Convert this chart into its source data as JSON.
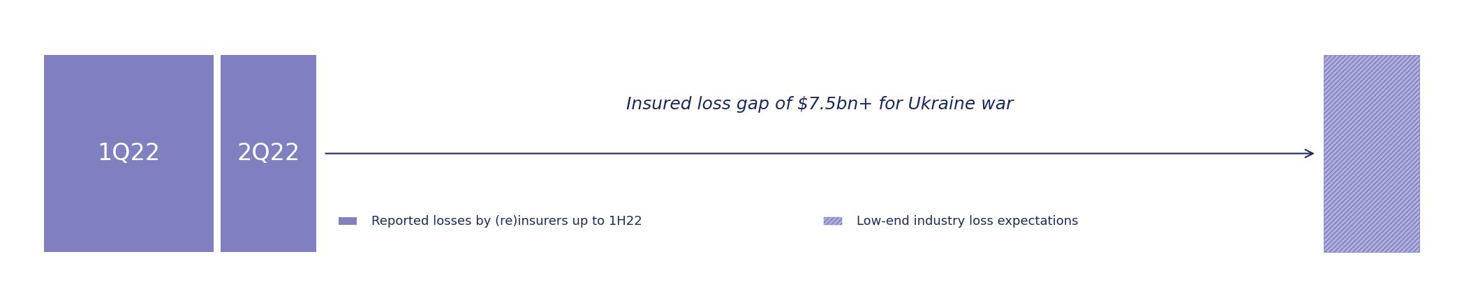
{
  "bg_color": "#ffffff",
  "box_color": "#8080c0",
  "box_color_light": "#a0a0d8",
  "stripe_color_dark": "#7878b8",
  "stripe_color_light": "#b0b0e0",
  "box1_label": "1Q22",
  "box2_label": "2Q22",
  "arrow_color": "#1a2a5a",
  "title_text": "Insured loss gap of $7.5bn+ for Ukraine war",
  "title_color": "#1a2a5a",
  "title_fontsize": 18,
  "legend1_color": "#8080c0",
  "legend1_text": "Reported losses by (re)insurers up to 1H22",
  "legend2_text": "Low-end industry loss expectations",
  "legend_fontsize": 13,
  "label_fontsize": 24,
  "label_color": "#ffffff"
}
